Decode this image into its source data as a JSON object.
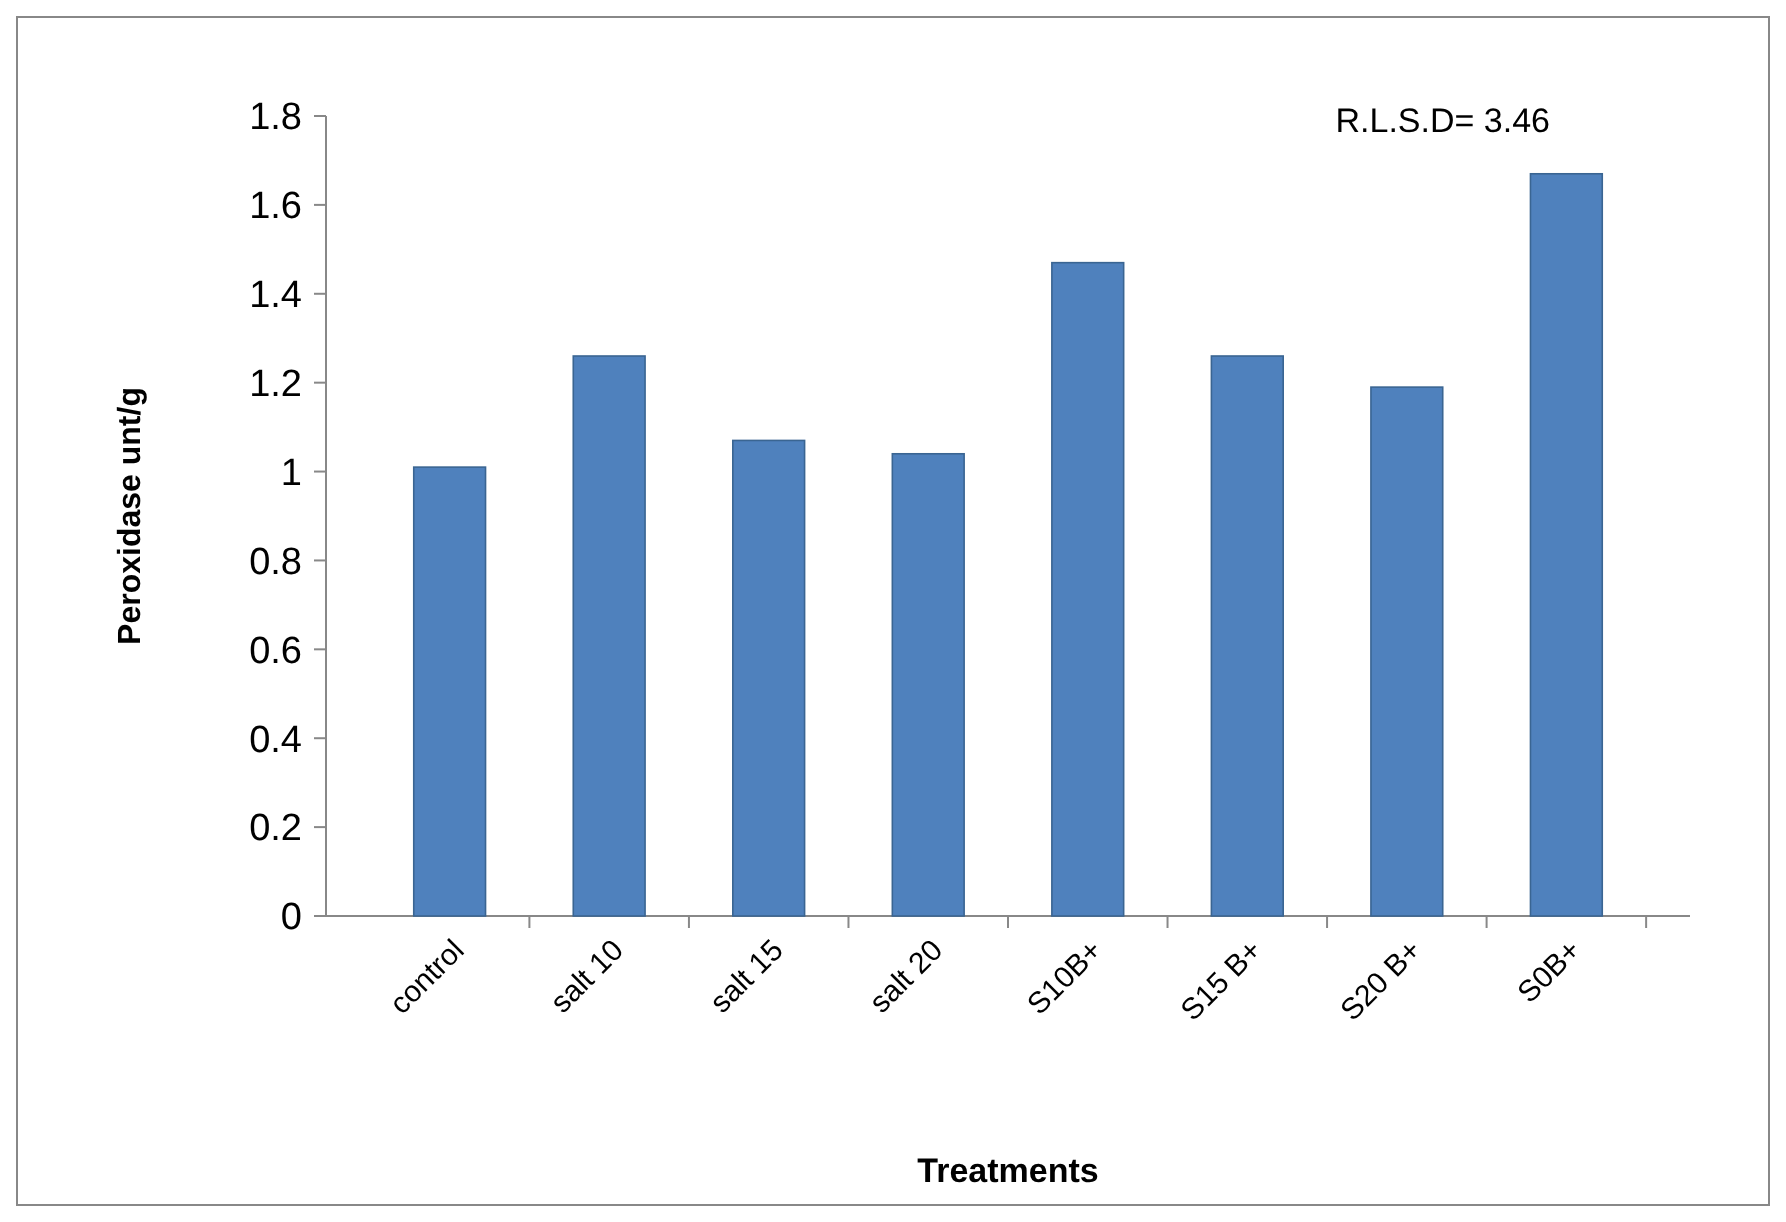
{
  "chart_data": {
    "type": "bar",
    "xlabel": "Treatments",
    "ylabel": "Peroxidase unt/g",
    "categories": [
      "control",
      "salt 10",
      "salt 15",
      "salt 20",
      "S10B+",
      "S15 B+",
      "S20 B+",
      "S0B+"
    ],
    "values": [
      1.01,
      1.26,
      1.07,
      1.04,
      1.47,
      1.26,
      1.19,
      1.67
    ],
    "color": "#4f81bd",
    "ylim": [
      0,
      1.8
    ],
    "yticks": [
      0,
      0.2,
      0.4,
      0.6,
      0.8,
      1,
      1.2,
      1.4,
      1.6,
      1.8
    ],
    "grid": false,
    "annotations": [
      "R.L.S.D= 3.46"
    ]
  }
}
